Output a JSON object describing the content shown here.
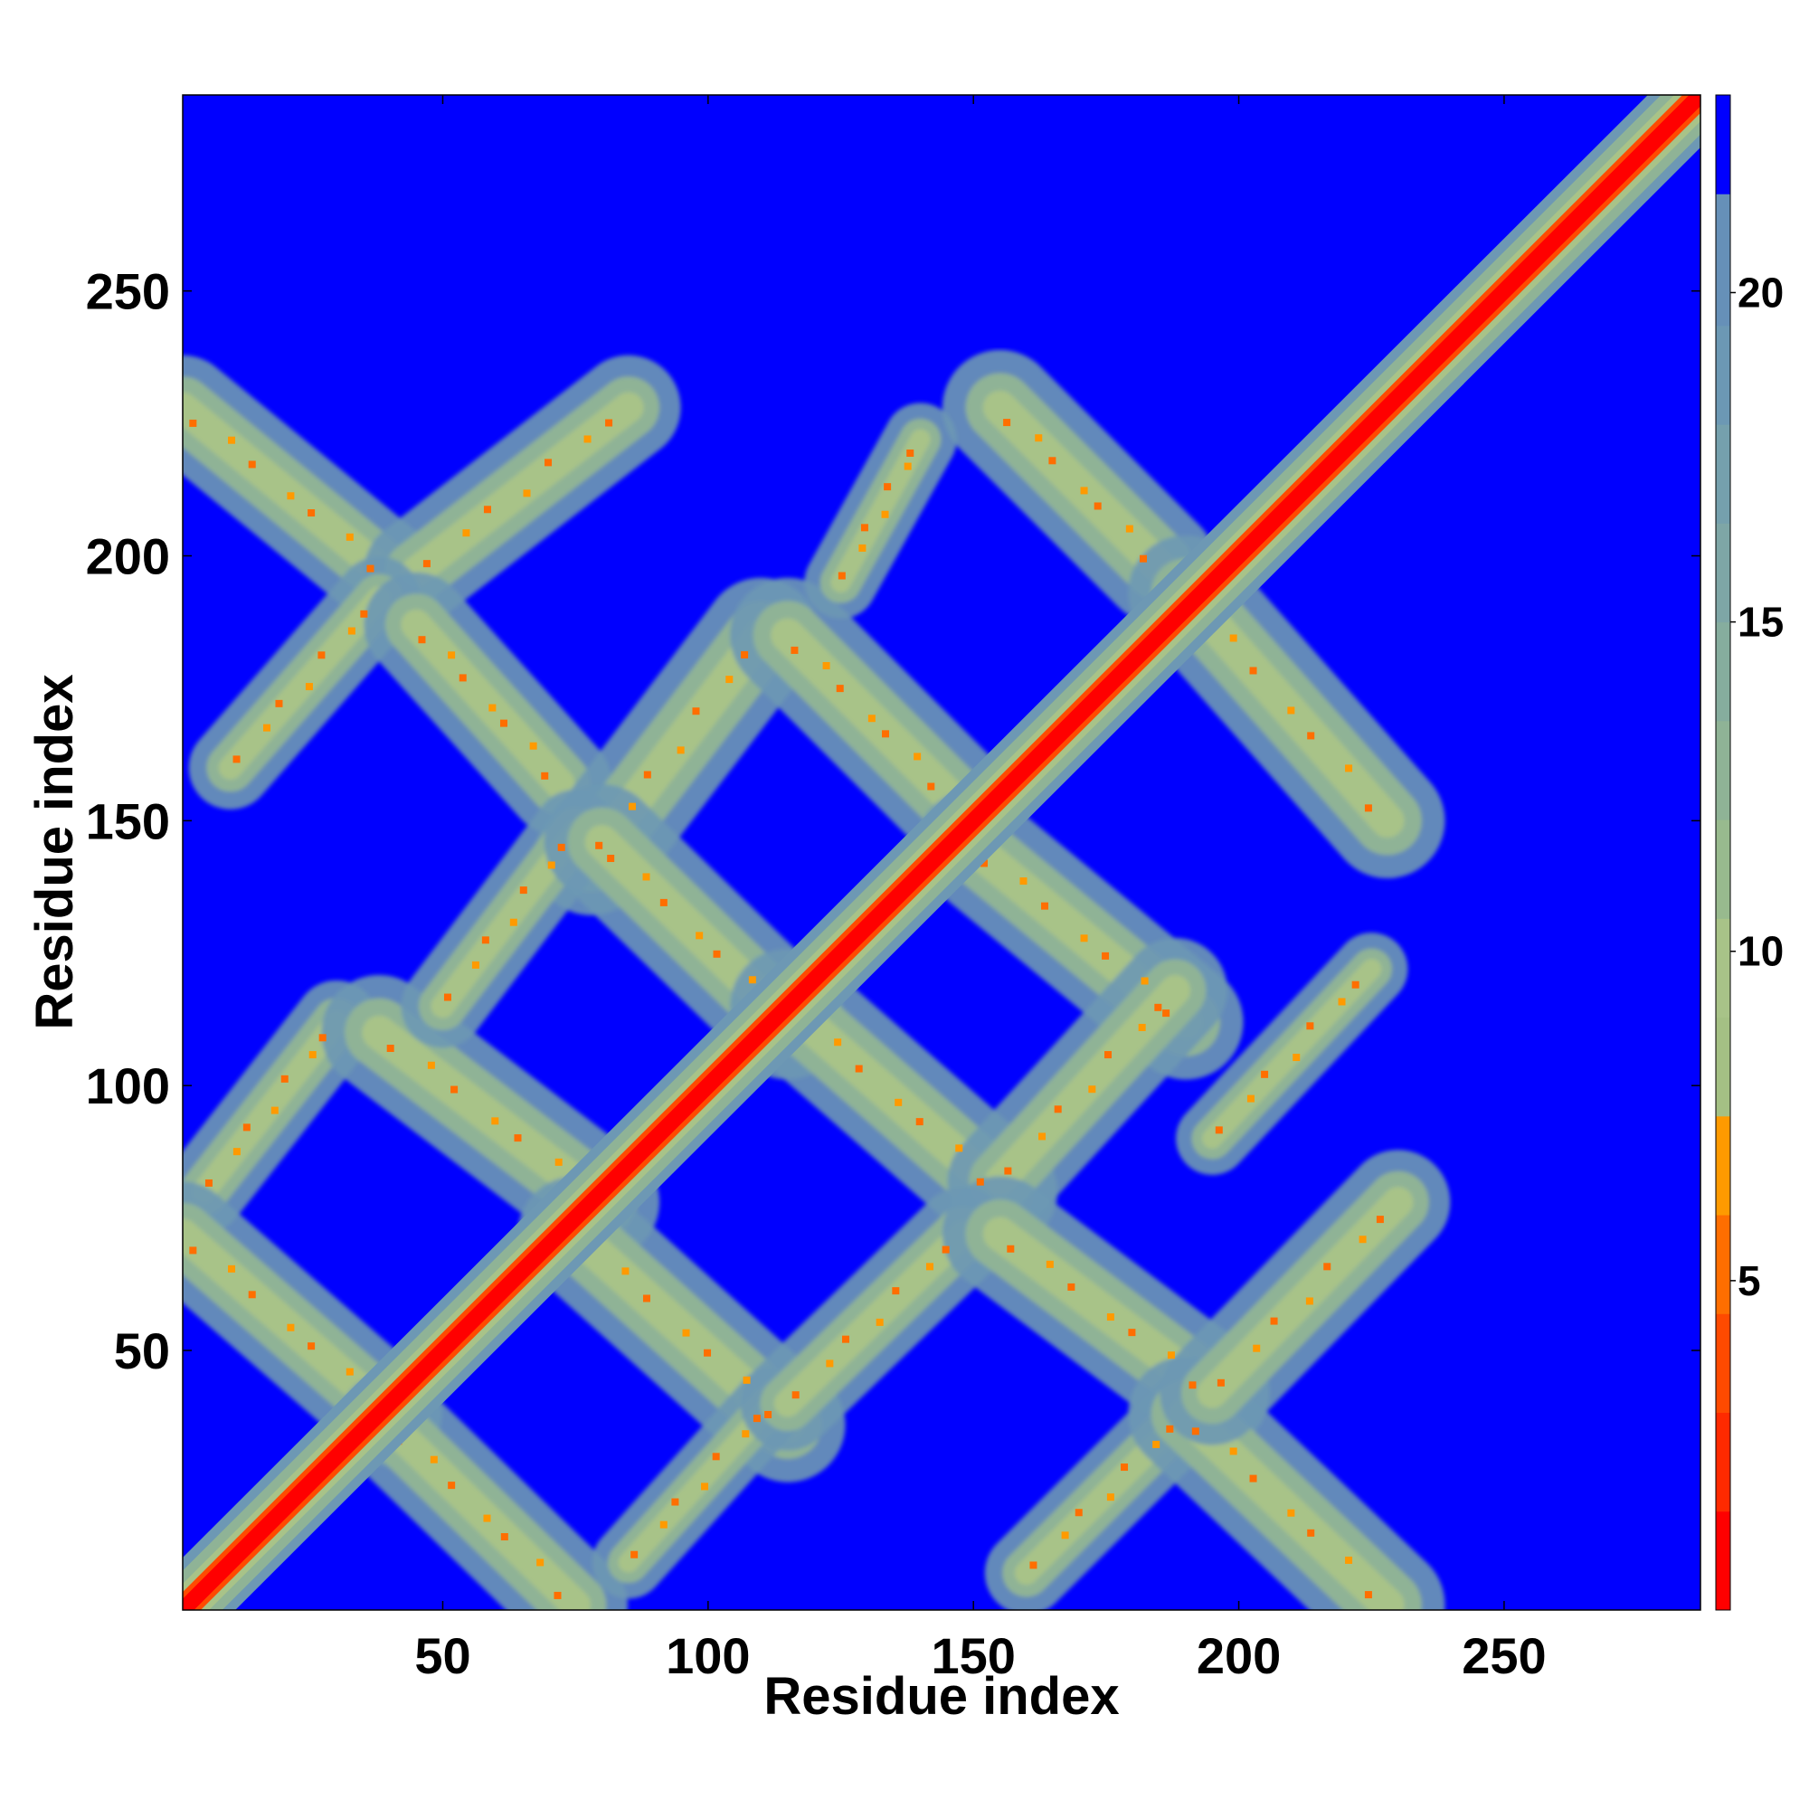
{
  "chart_data": {
    "type": "heatmap",
    "title": "",
    "xlabel": "Residue index",
    "ylabel": "Residue index",
    "xlim": [
      1,
      287
    ],
    "ylim": [
      1,
      287
    ],
    "x_ticks": [
      50,
      100,
      150,
      200,
      250
    ],
    "y_ticks": [
      50,
      100,
      150,
      200,
      250
    ],
    "colorbar": {
      "range": [
        0,
        23
      ],
      "ticks": [
        5,
        10,
        15,
        20
      ],
      "bands": [
        {
          "from": 0,
          "to": 1.5,
          "color": "#ff0000"
        },
        {
          "from": 1.5,
          "to": 3,
          "color": "#ff2a00"
        },
        {
          "from": 3,
          "to": 4.5,
          "color": "#ff4a00"
        },
        {
          "from": 4.5,
          "to": 6,
          "color": "#ff6e00"
        },
        {
          "from": 6,
          "to": 7.5,
          "color": "#ff9a00"
        },
        {
          "from": 7.5,
          "to": 9,
          "color": "#a4c084"
        },
        {
          "from": 9,
          "to": 10.5,
          "color": "#a8c388"
        },
        {
          "from": 10.5,
          "to": 12,
          "color": "#98ba8e"
        },
        {
          "from": 12,
          "to": 13.5,
          "color": "#8fb396"
        },
        {
          "from": 13.5,
          "to": 15,
          "color": "#86ad9e"
        },
        {
          "from": 15,
          "to": 16.5,
          "color": "#7ea6a6"
        },
        {
          "from": 16.5,
          "to": 18,
          "color": "#75a0ad"
        },
        {
          "from": 18,
          "to": 19.5,
          "color": "#6c98b4"
        },
        {
          "from": 19.5,
          "to": 21.5,
          "color": "#6690b8"
        },
        {
          "from": 21.5,
          "to": 23,
          "color": "#0000ff"
        }
      ]
    },
    "background_color": "#0000ff",
    "diagonal": {
      "core_width": 3,
      "band_width": 14
    },
    "off_diagonal_bands": [
      {
        "x": [
          1,
          40
        ],
        "y": [
          228,
          196
        ],
        "half_width": 9
      },
      {
        "x": [
          45,
          85
        ],
        "y": [
          197,
          228
        ],
        "half_width": 9
      },
      {
        "x": [
          10,
          38
        ],
        "y": [
          160,
          192
        ],
        "half_width": 7
      },
      {
        "x": [
          45,
          72
        ],
        "y": [
          187,
          157
        ],
        "half_width": 9
      },
      {
        "x": [
          78,
          110
        ],
        "y": [
          143,
          185
        ],
        "half_width": 10
      },
      {
        "x": [
          115,
          145
        ],
        "y": [
          185,
          155
        ],
        "half_width": 10
      },
      {
        "x": [
          125,
          140
        ],
        "y": [
          195,
          222
        ],
        "half_width": 6
      },
      {
        "x": [
          155,
          185
        ],
        "y": [
          228,
          198
        ],
        "half_width": 10
      },
      {
        "x": [
          190,
          228
        ],
        "y": [
          193,
          150
        ],
        "half_width": 10
      },
      {
        "x": [
          5,
          30
        ],
        "y": [
          80,
          112
        ],
        "half_width": 7
      },
      {
        "x": [
          38,
          80
        ],
        "y": [
          110,
          78
        ],
        "half_width": 10
      },
      {
        "x": [
          50,
          75
        ],
        "y": [
          115,
          148
        ],
        "half_width": 7
      },
      {
        "x": [
          80,
          115
        ],
        "y": [
          146,
          112
        ],
        "half_width": 10
      },
      {
        "x": [
          115,
          155
        ],
        "y": [
          115,
          80
        ],
        "half_width": 10
      },
      {
        "x": [
          150,
          190
        ],
        "y": [
          145,
          112
        ],
        "half_width": 10
      },
      {
        "x": [
          155,
          188
        ],
        "y": [
          82,
          118
        ],
        "half_width": 9
      },
      {
        "x": [
          195,
          225
        ],
        "y": [
          90,
          122
        ],
        "half_width": 6
      },
      {
        "x": [
          1,
          40
        ],
        "y": [
          72,
          38
        ],
        "half_width": 9
      },
      {
        "x": [
          40,
          75
        ],
        "y": [
          36,
          2
        ],
        "half_width": 9
      },
      {
        "x": [
          75,
          115
        ],
        "y": [
          72,
          36
        ],
        "half_width": 10
      },
      {
        "x": [
          85,
          112
        ],
        "y": [
          10,
          40
        ],
        "half_width": 6
      },
      {
        "x": [
          115,
          148
        ],
        "y": [
          40,
          72
        ],
        "half_width": 8
      },
      {
        "x": [
          155,
          195
        ],
        "y": [
          72,
          42
        ],
        "half_width": 10
      },
      {
        "x": [
          160,
          190
        ],
        "y": [
          8,
          38
        ],
        "half_width": 7
      },
      {
        "x": [
          190,
          228
        ],
        "y": [
          38,
          2
        ],
        "half_width": 10
      },
      {
        "x": [
          195,
          230
        ],
        "y": [
          42,
          78
        ],
        "half_width": 9
      }
    ]
  }
}
